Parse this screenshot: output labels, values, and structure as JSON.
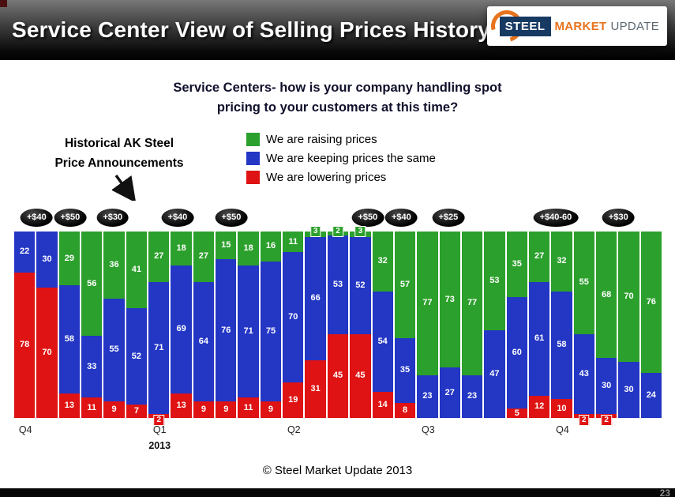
{
  "header": {
    "title": "Service Center View of Selling Prices History",
    "logo": {
      "steel": "STEEL",
      "market": "MARKET",
      "update": "UPDATE"
    }
  },
  "question": {
    "lead": "Service Centers-",
    "line1_rest": " how is your company handling spot",
    "line2": "pricing to your customers at this time?"
  },
  "annotation": {
    "line1": "Historical AK Steel",
    "line2": "Price Announcements"
  },
  "chart_data": {
    "type": "bar",
    "stacked": true,
    "percent_of_total": true,
    "ylim": [
      0,
      100
    ],
    "grid": false,
    "legend_position": "top-center",
    "series": [
      {
        "name": "We are raising prices",
        "key": "raising",
        "color": "#2ca02c",
        "values": [
          0,
          0,
          29,
          56,
          36,
          41,
          27,
          18,
          27,
          15,
          18,
          16,
          11,
          3,
          2,
          3,
          32,
          57,
          77,
          73,
          77,
          53,
          35,
          27,
          32,
          55,
          68,
          70,
          76
        ]
      },
      {
        "name": "We are keeping prices the same",
        "key": "same",
        "color": "#2336c4",
        "values": [
          22,
          30,
          58,
          33,
          55,
          52,
          71,
          69,
          64,
          76,
          71,
          75,
          70,
          66,
          53,
          52,
          54,
          35,
          23,
          27,
          23,
          47,
          60,
          61,
          58,
          43,
          30,
          30,
          24
        ]
      },
      {
        "name": "We are lowering prices",
        "key": "lowering",
        "color": "#df1313",
        "values": [
          78,
          70,
          13,
          11,
          9,
          7,
          2,
          13,
          9,
          9,
          11,
          9,
          19,
          31,
          45,
          45,
          14,
          8,
          0,
          0,
          0,
          0,
          5,
          12,
          10,
          2,
          2,
          0,
          0
        ]
      }
    ],
    "x_ticks": [
      {
        "bar": 1,
        "label": "Q4"
      },
      {
        "bar": 7,
        "label": "Q1",
        "sublabel": "2013"
      },
      {
        "bar": 13,
        "label": "Q2"
      },
      {
        "bar": 19,
        "label": "Q3"
      },
      {
        "bar": 25,
        "label": "Q4"
      }
    ],
    "annotations": [
      {
        "label": "+$40",
        "bar": 1.5
      },
      {
        "label": "+$50",
        "bar": 3
      },
      {
        "label": "+$30",
        "bar": 4.9
      },
      {
        "label": "+$40",
        "bar": 7.8
      },
      {
        "label": "+$50",
        "bar": 10.2
      },
      {
        "label": "+$50",
        "bar": 16.3
      },
      {
        "label": "+$40",
        "bar": 17.8
      },
      {
        "label": "+$25",
        "bar": 19.9
      },
      {
        "label": "+$40-60",
        "bar": 24.7
      },
      {
        "label": "+$30",
        "bar": 27.5
      }
    ]
  },
  "footer": {
    "copyright": "© Steel Market Update 2013",
    "page_number": "23"
  }
}
